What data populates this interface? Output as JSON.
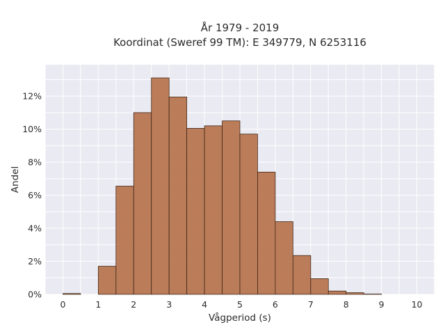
{
  "chart_data": {
    "type": "bar",
    "title_line1": "År 1979 - 2019",
    "title_line2": "Koordinat (Sweref 99 TM): E 349779, N 6253116",
    "xlabel": "Vågperiod (s)",
    "ylabel": "Andel",
    "xlim": [
      -0.5,
      10.5
    ],
    "ylim": [
      0,
      13.9
    ],
    "x_ticks": [
      0,
      1,
      2,
      3,
      4,
      5,
      6,
      7,
      8,
      9,
      10
    ],
    "y_ticks": [
      0,
      2,
      4,
      6,
      8,
      10,
      12
    ],
    "y_tick_suffix": "%",
    "bin_width": 0.5,
    "bin_starts": [
      0,
      0.5,
      1,
      1.5,
      2,
      2.5,
      3,
      3.5,
      4,
      4.5,
      5,
      5.5,
      6,
      6.5,
      7,
      7.5,
      8,
      8.5,
      9,
      9.5
    ],
    "values": [
      0.05,
      0,
      1.7,
      6.55,
      11.0,
      13.1,
      11.95,
      10.05,
      10.2,
      10.5,
      9.7,
      7.4,
      4.4,
      2.35,
      0.95,
      0.2,
      0.1,
      0.02,
      0,
      0
    ],
    "grid": true,
    "colors": {
      "bar_fill": "#b87651",
      "bar_edge": "#3f2717",
      "plot_background": "#eaeaf2",
      "grid": "#ffffff"
    }
  }
}
